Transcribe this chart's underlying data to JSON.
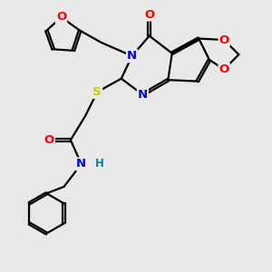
{
  "background_color": "#e8e8e8",
  "bond_color": "#000000",
  "atom_colors": {
    "O": "#ff0000",
    "N": "#0000ff",
    "S": "#cccc00",
    "H": "#008888",
    "C": "#000000"
  },
  "figsize": [
    3.0,
    3.0
  ],
  "dpi": 100
}
